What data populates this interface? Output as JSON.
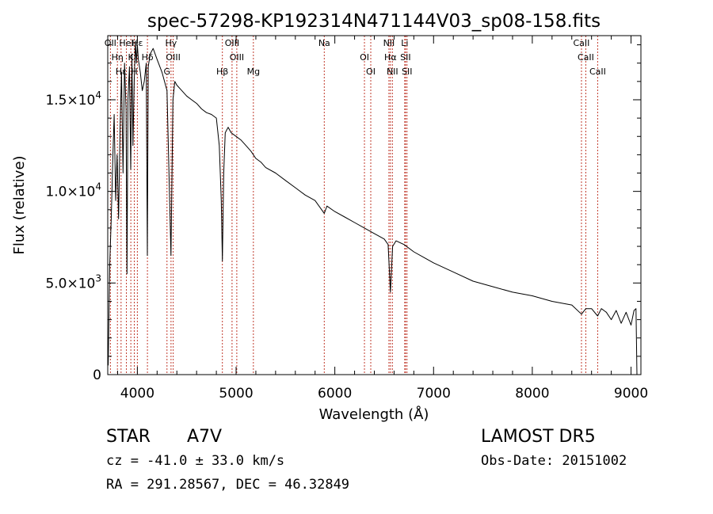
{
  "chart_data": {
    "type": "line",
    "title": "spec-57298-KP192314N471144V03_sp08-158.fits",
    "xlabel": "Wavelength (Å)",
    "ylabel": "Flux (relative)",
    "xlim": [
      3700,
      9100
    ],
    "ylim": [
      0,
      18500
    ],
    "x_ticks": [
      {
        "value": 4000,
        "label": "4000"
      },
      {
        "value": 5000,
        "label": "5000"
      },
      {
        "value": 6000,
        "label": "6000"
      },
      {
        "value": 7000,
        "label": "7000"
      },
      {
        "value": 8000,
        "label": "8000"
      },
      {
        "value": 9000,
        "label": "9000"
      }
    ],
    "y_ticks": [
      {
        "value": 0,
        "mant": "0",
        "exp": ""
      },
      {
        "value": 5000,
        "mant": "5.0×10",
        "exp": "3"
      },
      {
        "value": 10000,
        "mant": "1.0×10",
        "exp": "4"
      },
      {
        "value": 15000,
        "mant": "1.5×10",
        "exp": "4"
      }
    ],
    "series": [
      {
        "color": "#000000",
        "x": [
          3705,
          3720,
          3735,
          3750,
          3765,
          3780,
          3795,
          3810,
          3825,
          3840,
          3855,
          3870,
          3885,
          3895,
          3905,
          3920,
          3933,
          3945,
          3955,
          3968,
          3980,
          3990,
          4000,
          4010,
          4030,
          4050,
          4070,
          4090,
          4101,
          4110,
          4130,
          4160,
          4200,
          4250,
          4300,
          4320,
          4340,
          4360,
          4380,
          4400,
          4450,
          4500,
          4550,
          4600,
          4650,
          4700,
          4750,
          4800,
          4830,
          4850,
          4861,
          4875,
          4890,
          4920,
          4950,
          5000,
          5050,
          5100,
          5150,
          5200,
          5250,
          5300,
          5400,
          5500,
          5600,
          5700,
          5800,
          5893,
          5920,
          6000,
          6100,
          6200,
          6300,
          6400,
          6500,
          6540,
          6563,
          6585,
          6620,
          6700,
          6800,
          6900,
          7000,
          7200,
          7400,
          7600,
          7800,
          8000,
          8200,
          8400,
          8498,
          8542,
          8600,
          8662,
          8700,
          8750,
          8800,
          8850,
          8900,
          8950,
          9000,
          9030,
          9050,
          9060
        ],
        "y": [
          500,
          6000,
          8500,
          11500,
          14200,
          9500,
          12000,
          8500,
          13500,
          16500,
          11000,
          17000,
          14500,
          5500,
          15000,
          16800,
          11200,
          17500,
          12500,
          16000,
          18200,
          17000,
          18000,
          17200,
          16500,
          15500,
          16000,
          17000,
          6500,
          16800,
          17500,
          17800,
          17200,
          16500,
          15500,
          11000,
          6500,
          15000,
          16000,
          15800,
          15500,
          15200,
          15000,
          14800,
          14500,
          14300,
          14200,
          14000,
          12500,
          9500,
          6200,
          11000,
          13200,
          13500,
          13200,
          13000,
          12800,
          12500,
          12200,
          11800,
          11600,
          11300,
          11000,
          10600,
          10200,
          9800,
          9500,
          8800,
          9200,
          8900,
          8600,
          8300,
          8000,
          7700,
          7400,
          7100,
          4500,
          7000,
          7300,
          7100,
          6700,
          6400,
          6100,
          5600,
          5100,
          4800,
          4500,
          4300,
          4000,
          3800,
          3300,
          3600,
          3600,
          3200,
          3600,
          3400,
          3000,
          3500,
          2800,
          3400,
          2700,
          3500,
          3600,
          0
        ]
      }
    ],
    "lines": [
      {
        "x": 3727,
        "label": "OII"
      },
      {
        "x": 3798,
        "label": "Hη"
      },
      {
        "x": 3835,
        "label": "Hε"
      },
      {
        "x": 3889,
        "label": "HeI"
      },
      {
        "x": 3934,
        "label": "K"
      },
      {
        "x": 3969,
        "label": "H"
      },
      {
        "x": 4000,
        "label": "Hε"
      },
      {
        "x": 4102,
        "label": "Hδ"
      },
      {
        "x": 4300,
        "label": "G"
      },
      {
        "x": 4341,
        "label": "Hγ"
      },
      {
        "x": 4363,
        "label": "OIII"
      },
      {
        "x": 4861,
        "label": "Hβ"
      },
      {
        "x": 4959,
        "label": "OIII"
      },
      {
        "x": 5007,
        "label": "OIII"
      },
      {
        "x": 5175,
        "label": "Mg"
      },
      {
        "x": 5893,
        "label": "Na"
      },
      {
        "x": 6300,
        "label": "OI"
      },
      {
        "x": 6364,
        "label": "OI"
      },
      {
        "x": 6548,
        "label": "NII"
      },
      {
        "x": 6563,
        "label": "Hα"
      },
      {
        "x": 6583,
        "label": "NII"
      },
      {
        "x": 6708,
        "label": "Li"
      },
      {
        "x": 6716,
        "label": "SII"
      },
      {
        "x": 6731,
        "label": "SII"
      },
      {
        "x": 8498,
        "label": "CaII"
      },
      {
        "x": 8542,
        "label": "CaII"
      },
      {
        "x": 8662,
        "label": "CaII"
      }
    ],
    "line_color": "#c0392b"
  },
  "info": {
    "obj_class": "STAR",
    "subclass": "A7V",
    "survey": "LAMOST DR5",
    "cz": "cz = -41.0 ± 33.0 km/s",
    "obs_date": "Obs-Date: 20151002",
    "radec": "RA = 291.28567, DEC =  46.32849"
  }
}
